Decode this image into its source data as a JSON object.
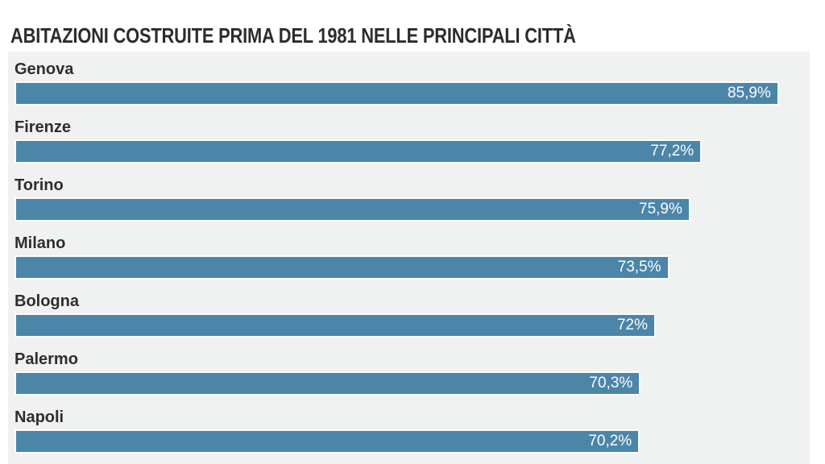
{
  "title": "ABITAZIONI COSTRUITE PRIMA DEL 1981 NELLE PRINCIPALI CITTÀ",
  "chart_data": {
    "type": "bar",
    "orientation": "horizontal",
    "title": "ABITAZIONI COSTRUITE PRIMA DEL 1981 NELLE PRINCIPALI CITTÀ",
    "categories": [
      "Genova",
      "Firenze",
      "Torino",
      "Milano",
      "Bologna",
      "Palermo",
      "Napoli"
    ],
    "values": [
      85.9,
      77.2,
      75.9,
      73.5,
      72,
      70.3,
      70.2
    ],
    "value_labels": [
      "85,9%",
      "77,2%",
      "75,9%",
      "73,5%",
      "72%",
      "70,3%",
      "70,2%"
    ],
    "xlabel": "",
    "ylabel": "",
    "xlim": [
      0,
      100
    ],
    "grid": false,
    "legend": false,
    "value_label_position": "inside-end",
    "colors": {
      "bar": "#4b86a8",
      "bar_outline": "#fafbfb",
      "panel_background": "#f0f2f2",
      "page_background": "#ffffff",
      "title_text": "#2c2c2c",
      "category_text": "#2e2e2e",
      "value_text": "#fdfdfd"
    }
  }
}
